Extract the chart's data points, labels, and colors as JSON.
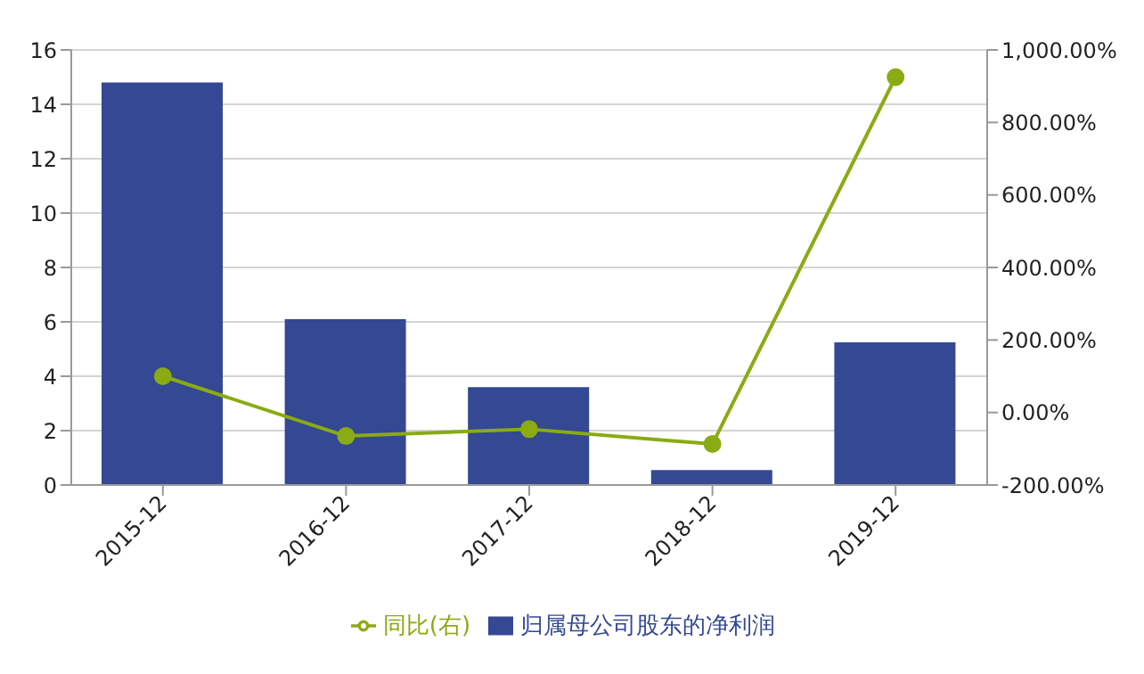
{
  "chart_data": {
    "type": "bar",
    "categories": [
      "2015-12",
      "2016-12",
      "2017-12",
      "2018-12",
      "2019-12"
    ],
    "series": [
      {
        "name": "归属母公司股东的净利润",
        "color": "#344893",
        "values": [
          14.8,
          6.1,
          3.6,
          0.55,
          5.25
        ]
      },
      {
        "name": "同比(右)",
        "type": "line",
        "axis": "y2",
        "color": "#8aab13",
        "values": [
          100,
          -65,
          -46,
          -87,
          925
        ]
      }
    ],
    "ylim": [
      0,
      16
    ],
    "yticks": [
      0,
      2,
      4,
      6,
      8,
      10,
      12,
      14,
      16
    ],
    "y2lim": [
      -200,
      1000
    ],
    "y2ticks": [
      {
        "value": -200,
        "label": "-200.00%"
      },
      {
        "value": 0,
        "label": "0.00%"
      },
      {
        "value": 200,
        "label": "200.00%"
      },
      {
        "value": 400,
        "label": "400.00%"
      },
      {
        "value": 600,
        "label": "600.00%"
      },
      {
        "value": 800,
        "label": "800.00%"
      },
      {
        "value": 1000,
        "label": "1,000.00%"
      }
    ],
    "grid": "y",
    "legend": "bottom",
    "marker": "circle"
  }
}
